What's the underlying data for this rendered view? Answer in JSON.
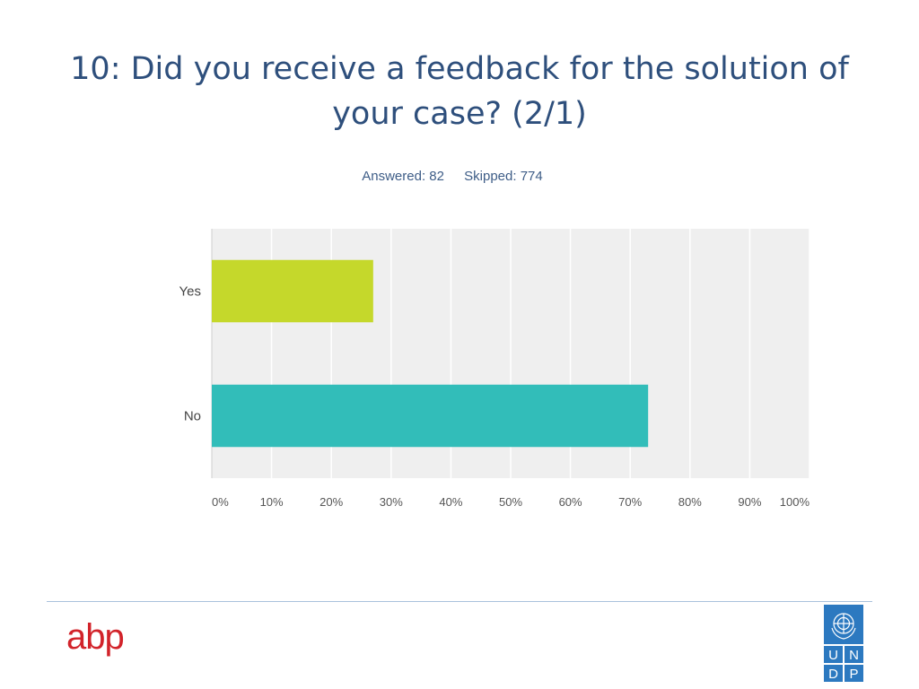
{
  "slide": {
    "title": "10: Did you receive a feedback for the solution of your case? (2/1)",
    "answered": "Answered: 82",
    "skipped": "Skipped: 774"
  },
  "colors": {
    "title": "#2e4f7c",
    "series": [
      "#c5d82b",
      "#32bdb9"
    ],
    "plot_bg": "#efefef",
    "abp": "#d2232a",
    "undp": "#2c79c0"
  },
  "chart_data": {
    "type": "bar",
    "orientation": "horizontal",
    "categories": [
      "Yes",
      "No"
    ],
    "values": [
      27,
      73
    ],
    "xlim": [
      0,
      100
    ],
    "x_ticks": [
      "0%",
      "10%",
      "20%",
      "30%",
      "40%",
      "50%",
      "60%",
      "70%",
      "80%",
      "90%",
      "100%"
    ],
    "grid": true
  },
  "logos": {
    "abp": "abp",
    "undp_letters": [
      "U",
      "N",
      "D",
      "P"
    ]
  }
}
